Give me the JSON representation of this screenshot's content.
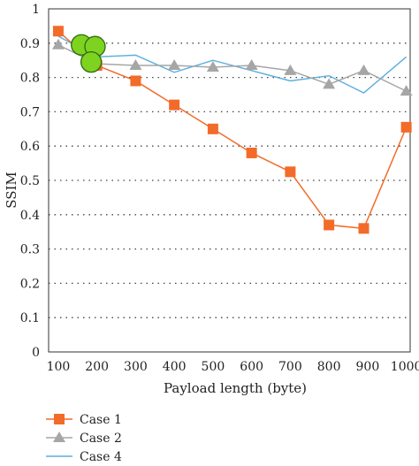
{
  "chart_data": {
    "type": "line",
    "x": [
      100,
      200,
      300,
      400,
      500,
      600,
      700,
      800,
      900,
      1000
    ],
    "xticks": [
      "100",
      "200",
      "300",
      "400",
      "500",
      "600",
      "700",
      "800",
      "900",
      "1000"
    ],
    "yticks": [
      "0",
      "0.1",
      "0.2",
      "0.3",
      "0.4",
      "0.5",
      "0.6",
      "0.7",
      "0.8",
      "0.9",
      "1"
    ],
    "xlabel": "Payload length (byte)",
    "ylabel": "SSIM",
    "xlim": [
      75,
      1010
    ],
    "ylim": [
      0,
      1
    ],
    "grid": "horizontal dotted",
    "legend_position": "bottom-left",
    "series": [
      {
        "name": "Case 1",
        "color": "#f26b2a",
        "marker": "square",
        "x": [
          100,
          200,
          300,
          400,
          500,
          600,
          700,
          800,
          890,
          1000
        ],
        "values": [
          0.935,
          0.835,
          0.79,
          0.72,
          0.65,
          0.58,
          0.525,
          0.37,
          0.36,
          0.655
        ]
      },
      {
        "name": "Case 2",
        "color": "#a6a6a6",
        "marker": "triangle",
        "x": [
          100,
          200,
          300,
          400,
          500,
          600,
          700,
          800,
          890,
          1000
        ],
        "values": [
          0.895,
          0.84,
          0.835,
          0.835,
          0.83,
          0.835,
          0.82,
          0.78,
          0.82,
          0.76
        ]
      },
      {
        "name": "Case 4",
        "color": "#5aaee0",
        "marker": "none",
        "x": [
          100,
          200,
          300,
          400,
          500,
          600,
          700,
          800,
          890,
          1000
        ],
        "values": [
          0.92,
          0.86,
          0.865,
          0.815,
          0.85,
          0.82,
          0.79,
          0.805,
          0.755,
          0.86
        ]
      }
    ],
    "highlight_circles": {
      "color": "#7ed321",
      "points": [
        {
          "x": 160,
          "y": 0.895
        },
        {
          "x": 195,
          "y": 0.89
        },
        {
          "x": 185,
          "y": 0.845
        }
      ]
    }
  }
}
